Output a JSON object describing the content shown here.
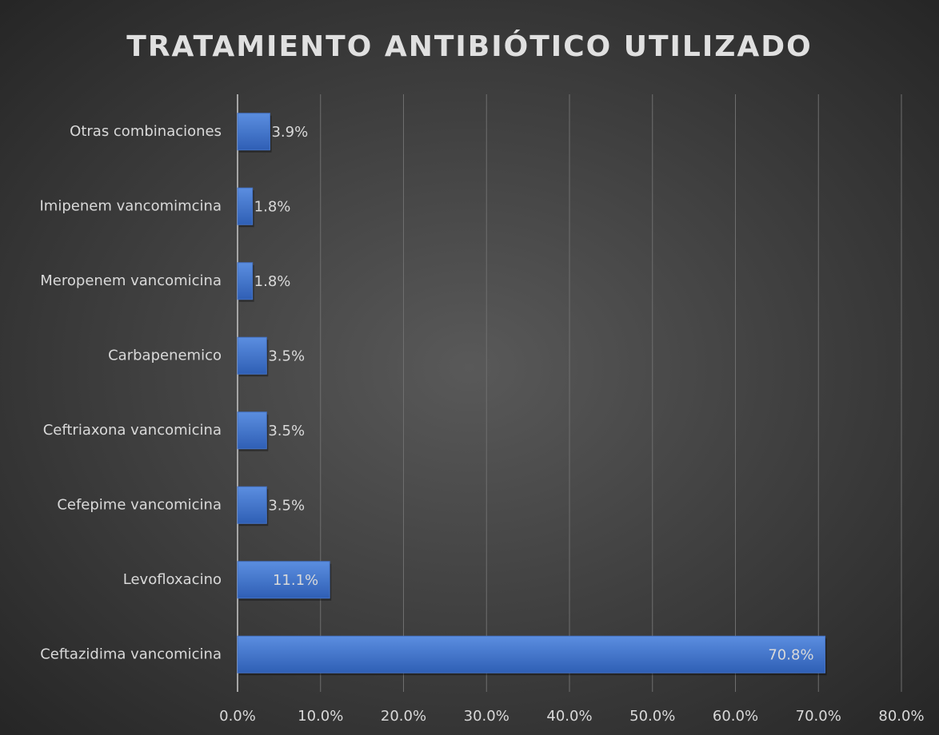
{
  "chart_data": {
    "type": "bar",
    "orientation": "horizontal",
    "title": "TRATAMIENTO ANTIBIÓTICO UTILIZADO",
    "categories": [
      "Ceftazidima vancomicina",
      "Levofloxacino",
      "Cefepime vancomicina",
      "Ceftriaxona vancomicina",
      "Carbapenemico",
      "Meropenem vancomicina",
      "Imipenem vancomimcina",
      "Otras combinaciones"
    ],
    "values": [
      70.8,
      11.1,
      3.5,
      3.5,
      3.5,
      1.8,
      1.8,
      3.9
    ],
    "value_labels": [
      "70.8%",
      "11.1%",
      "3.5%",
      "3.5%",
      "3.5%",
      "1.8%",
      "1.8%",
      "3.9%"
    ],
    "color": "#4472c4",
    "xlim": [
      0,
      80
    ],
    "xticks": [
      {
        "value": 0,
        "label": "0.0%"
      },
      {
        "value": 10,
        "label": "10.0%"
      },
      {
        "value": 20,
        "label": "20.0%"
      },
      {
        "value": 30,
        "label": "30.0%"
      },
      {
        "value": 40,
        "label": "40.0%"
      },
      {
        "value": 50,
        "label": "50.0%"
      },
      {
        "value": 60,
        "label": "60.0%"
      },
      {
        "value": 70,
        "label": "70.0%"
      },
      {
        "value": 80,
        "label": "80.0%"
      }
    ],
    "grid": true
  }
}
